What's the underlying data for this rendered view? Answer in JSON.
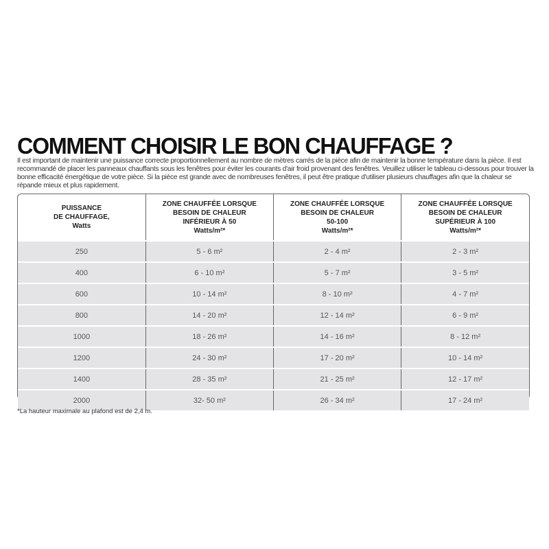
{
  "title": "COMMENT CHOISIR LE BON CHAUFFAGE ?",
  "intro": "Il est important de maintenir une puissance correcte proportionnellement au nombre de mètres carrés de la pièce afin de maintenir la bonne température dans la pièce. Il est recommandé de placer les panneaux chauffants sous les fenêtres pour éviter les courants d'air froid provenant des fenêtres. Veuillez utiliser le tableau ci-dessous pour trouver la bonne efficacité énergétique de votre pièce. Si la pièce est grande avec de nombreuses fenêtres, il peut être pratique d'utiliser plusieurs chauffages afin que la chaleur se répande mieux et plus rapidement.",
  "table": {
    "headers": [
      [
        "PUISSANCE",
        "DE CHAUFFAGE,",
        "Watts"
      ],
      [
        "ZONE CHAUFFÉE LORSQUE",
        "BESOIN DE CHALEUR",
        "INFÉRIEUR À 50",
        "Watts/m²*"
      ],
      [
        "ZONE CHAUFFÉE LORSQUE",
        "BESOIN DE CHALEUR",
        "50-100",
        "Watts/m²*"
      ],
      [
        "ZONE CHAUFFÉE LORSQUE",
        "BESOIN DE CHALEUR",
        "SUPÉRIEUR À 100",
        "Watts/m²*"
      ]
    ],
    "rows": [
      [
        "250",
        "5 - 6 m²",
        "2 - 4 m²",
        "2 - 3 m²"
      ],
      [
        "400",
        "6 - 10 m²",
        "5 - 7 m²",
        "3 - 5 m²"
      ],
      [
        "600",
        "10 - 14 m²",
        "8 - 10 m²",
        "4 - 7 m²"
      ],
      [
        "800",
        "14 - 20 m²",
        "12 - 14 m²",
        "6 - 9 m²"
      ],
      [
        "1000",
        "18 - 26 m²",
        "14 - 16 m²",
        "8 - 12 m²"
      ],
      [
        "1200",
        "24 - 30 m²",
        "17 - 20 m²",
        "10 - 14 m²"
      ],
      [
        "1400",
        "28 - 35 m²",
        "21 - 25 m²",
        "12 - 17 m²"
      ],
      [
        "2000",
        "32- 50 m²",
        "26 - 34 m²",
        "17 - 24 m²"
      ]
    ]
  },
  "footnote": "*La hauteur maximale au plafond est de 2,4 m."
}
